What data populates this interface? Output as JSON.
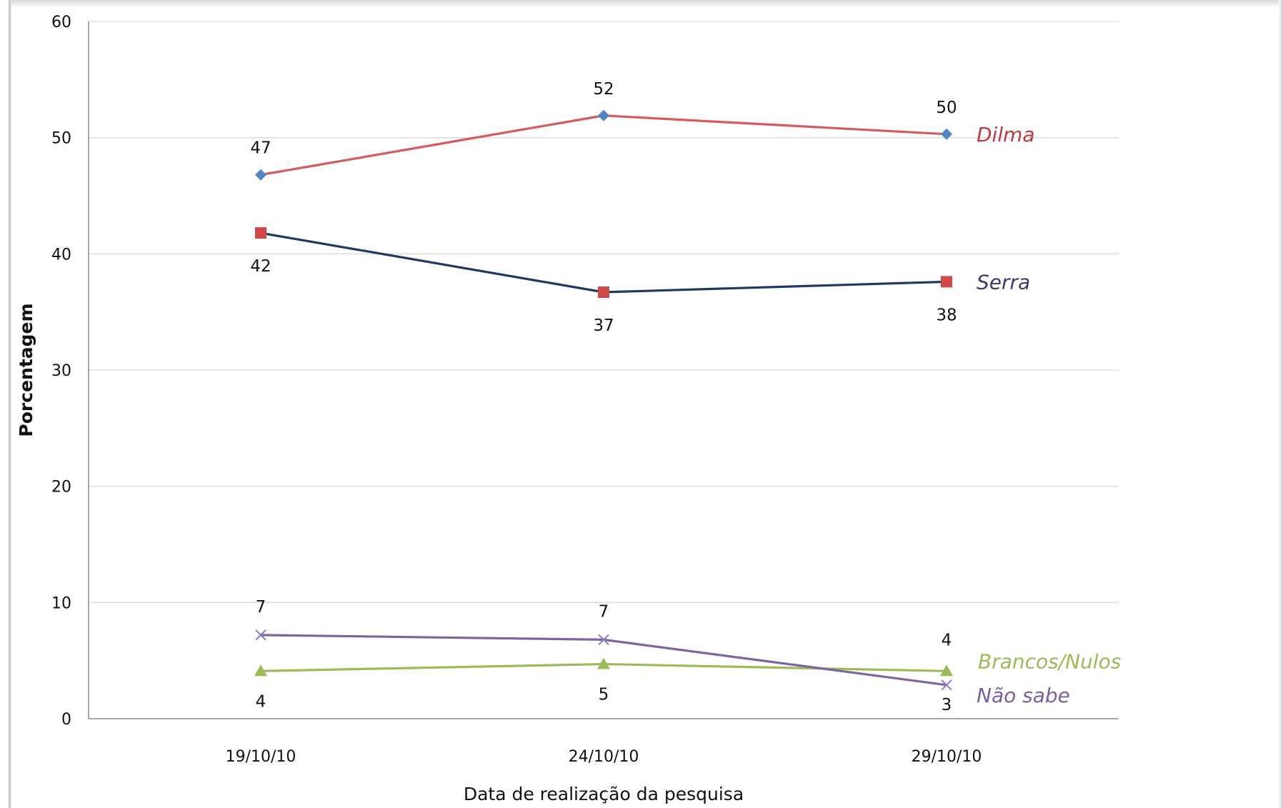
{
  "chart_data": {
    "type": "line",
    "title": "",
    "xlabel": "Data de realização da pesquisa",
    "ylabel": "Porcentagem",
    "ylim": [
      0,
      60
    ],
    "yticks": [
      0,
      10,
      20,
      30,
      40,
      50,
      60
    ],
    "grid": true,
    "legend": "inline labels at right end of each line",
    "categories": [
      "19/10/10",
      "24/10/10",
      "29/10/10"
    ],
    "series": [
      {
        "name": "Dilma",
        "values": [
          46.8,
          51.9,
          50.3
        ],
        "data_labels": [
          "47",
          "52",
          "50"
        ],
        "line_color": "#d65b5e",
        "marker": "diamond",
        "marker_color": "#4f86c6",
        "label_color": "#c0393e",
        "data_label_position": "above"
      },
      {
        "name": "Serra",
        "values": [
          41.8,
          36.7,
          37.6
        ],
        "data_labels": [
          "42",
          "37",
          "38"
        ],
        "line_color": "#1f3864",
        "marker": "square",
        "marker_color": "#d04848",
        "label_color": "#3d3d6b",
        "data_label_position": "below"
      },
      {
        "name": "Brancos/Nulos",
        "values": [
          4.1,
          4.7,
          4.1
        ],
        "data_labels": [
          "4",
          "5",
          "4"
        ],
        "line_color": "#9bbb59",
        "marker": "triangle",
        "marker_color": "#9bbb59",
        "label_color": "#9bbb59",
        "data_label_position": "below,below,above"
      },
      {
        "name": "Não sabe",
        "values": [
          7.2,
          6.8,
          2.9
        ],
        "data_labels": [
          "7",
          "7",
          "3"
        ],
        "line_color": "#8064a2",
        "marker": "x",
        "marker_color": "#8e7cc3",
        "label_color": "#7a5ea0",
        "data_label_position": "above,above,below"
      }
    ]
  }
}
